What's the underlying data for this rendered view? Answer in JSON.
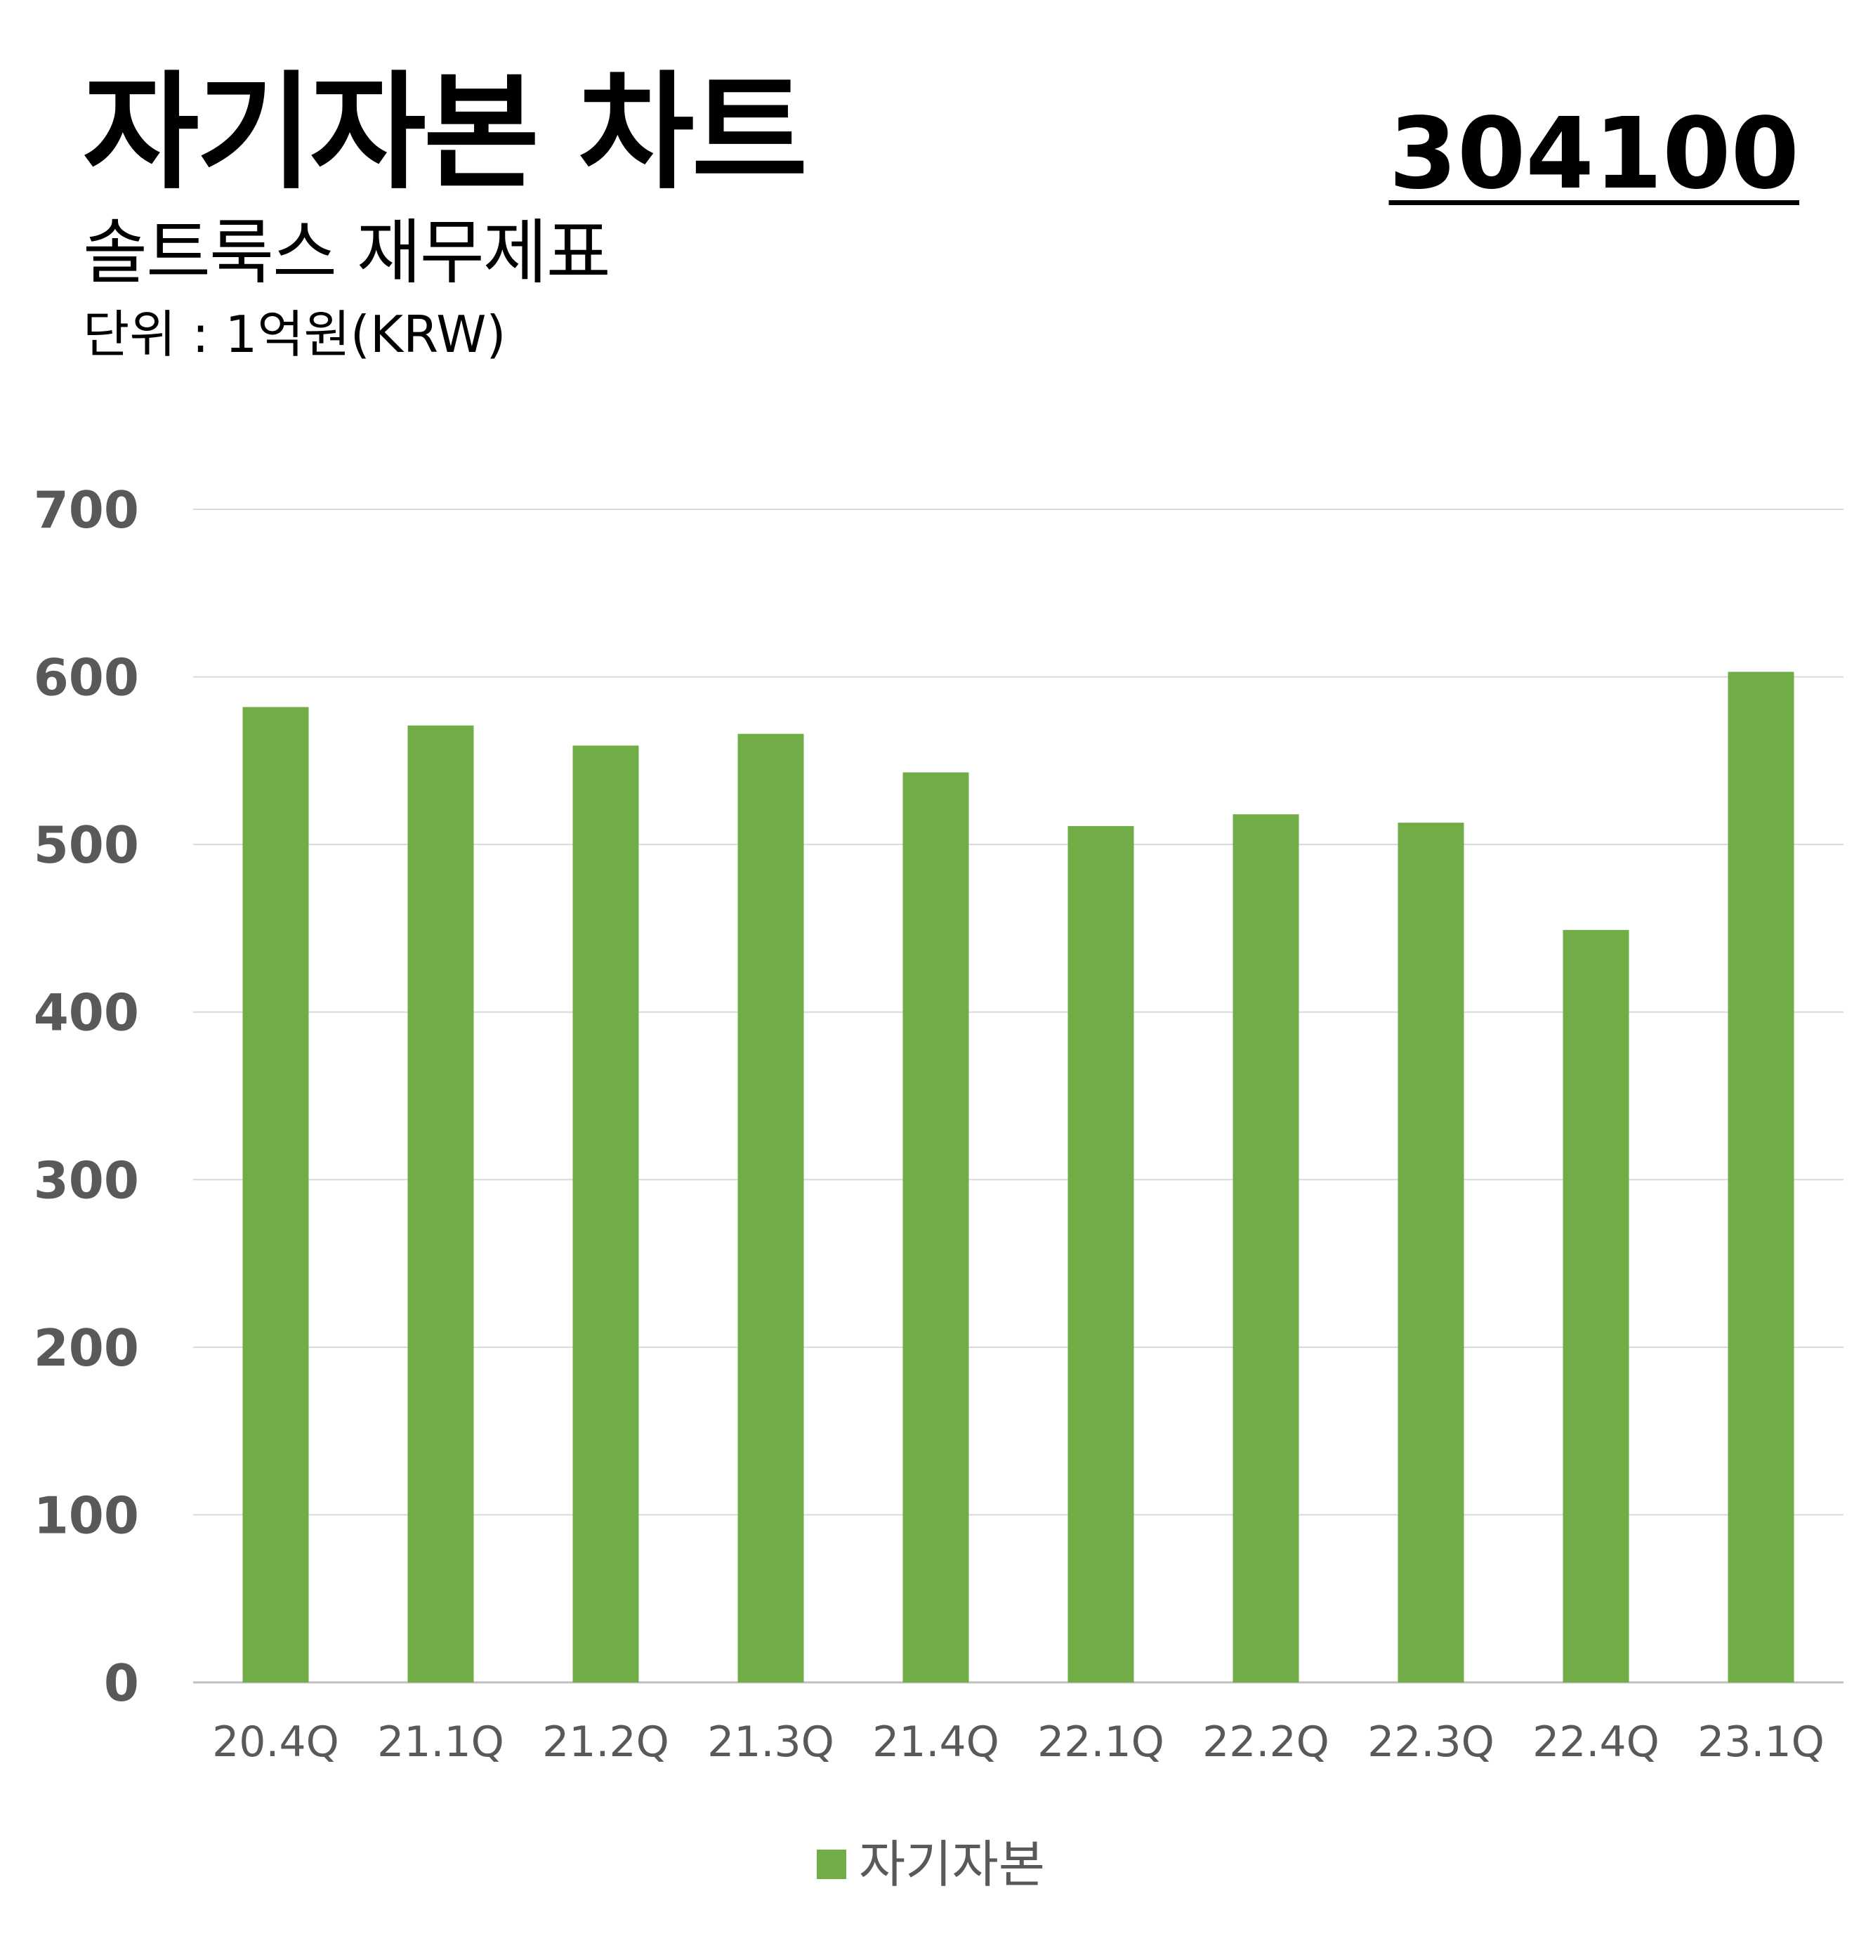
{
  "header": {
    "title": "자기자본 차트",
    "subtitle": "솔트룩스 재무제표",
    "unit": "단위 : 1억원(KRW)",
    "ticker": "304100"
  },
  "chart_data": {
    "type": "bar",
    "categories": [
      "20.4Q",
      "21.1Q",
      "21.2Q",
      "21.3Q",
      "21.4Q",
      "22.1Q",
      "22.2Q",
      "22.3Q",
      "22.4Q",
      "23.1Q"
    ],
    "series": [
      {
        "name": "자기자본",
        "values": [
          582,
          571,
          559,
          566,
          543,
          511,
          518,
          513,
          449,
          603
        ],
        "color": "#70AD47"
      }
    ],
    "yticks": [
      0,
      100,
      200,
      300,
      400,
      500,
      600,
      700
    ],
    "ylim": [
      0,
      700
    ],
    "grid": true,
    "legend": "bottom-center"
  }
}
